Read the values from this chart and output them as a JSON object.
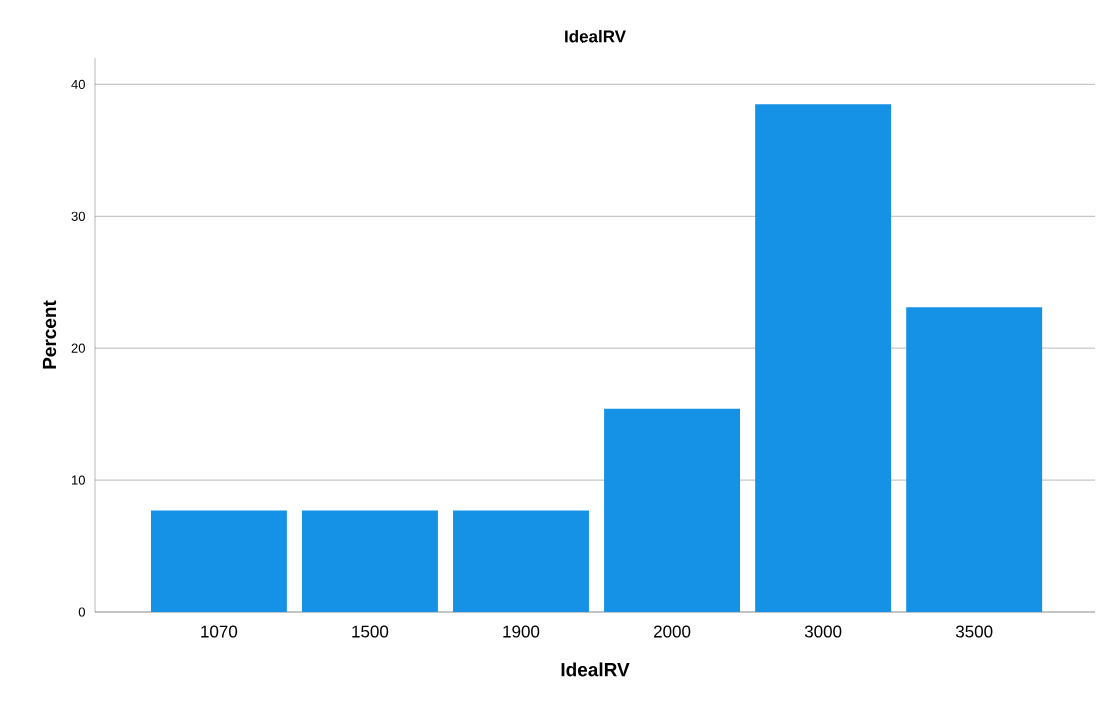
{
  "chart_data": {
    "type": "bar",
    "title": "IdealRV",
    "xlabel": "IdealRV",
    "ylabel": "Percent",
    "categories": [
      "1070",
      "1500",
      "1900",
      "2000",
      "3000",
      "3500"
    ],
    "values": [
      7.7,
      7.7,
      7.7,
      15.4,
      38.5,
      23.1
    ],
    "color": "#1592e6",
    "ylim": [
      0,
      42
    ],
    "yticks": [
      0,
      10,
      20,
      30,
      40
    ],
    "grid": "y"
  }
}
